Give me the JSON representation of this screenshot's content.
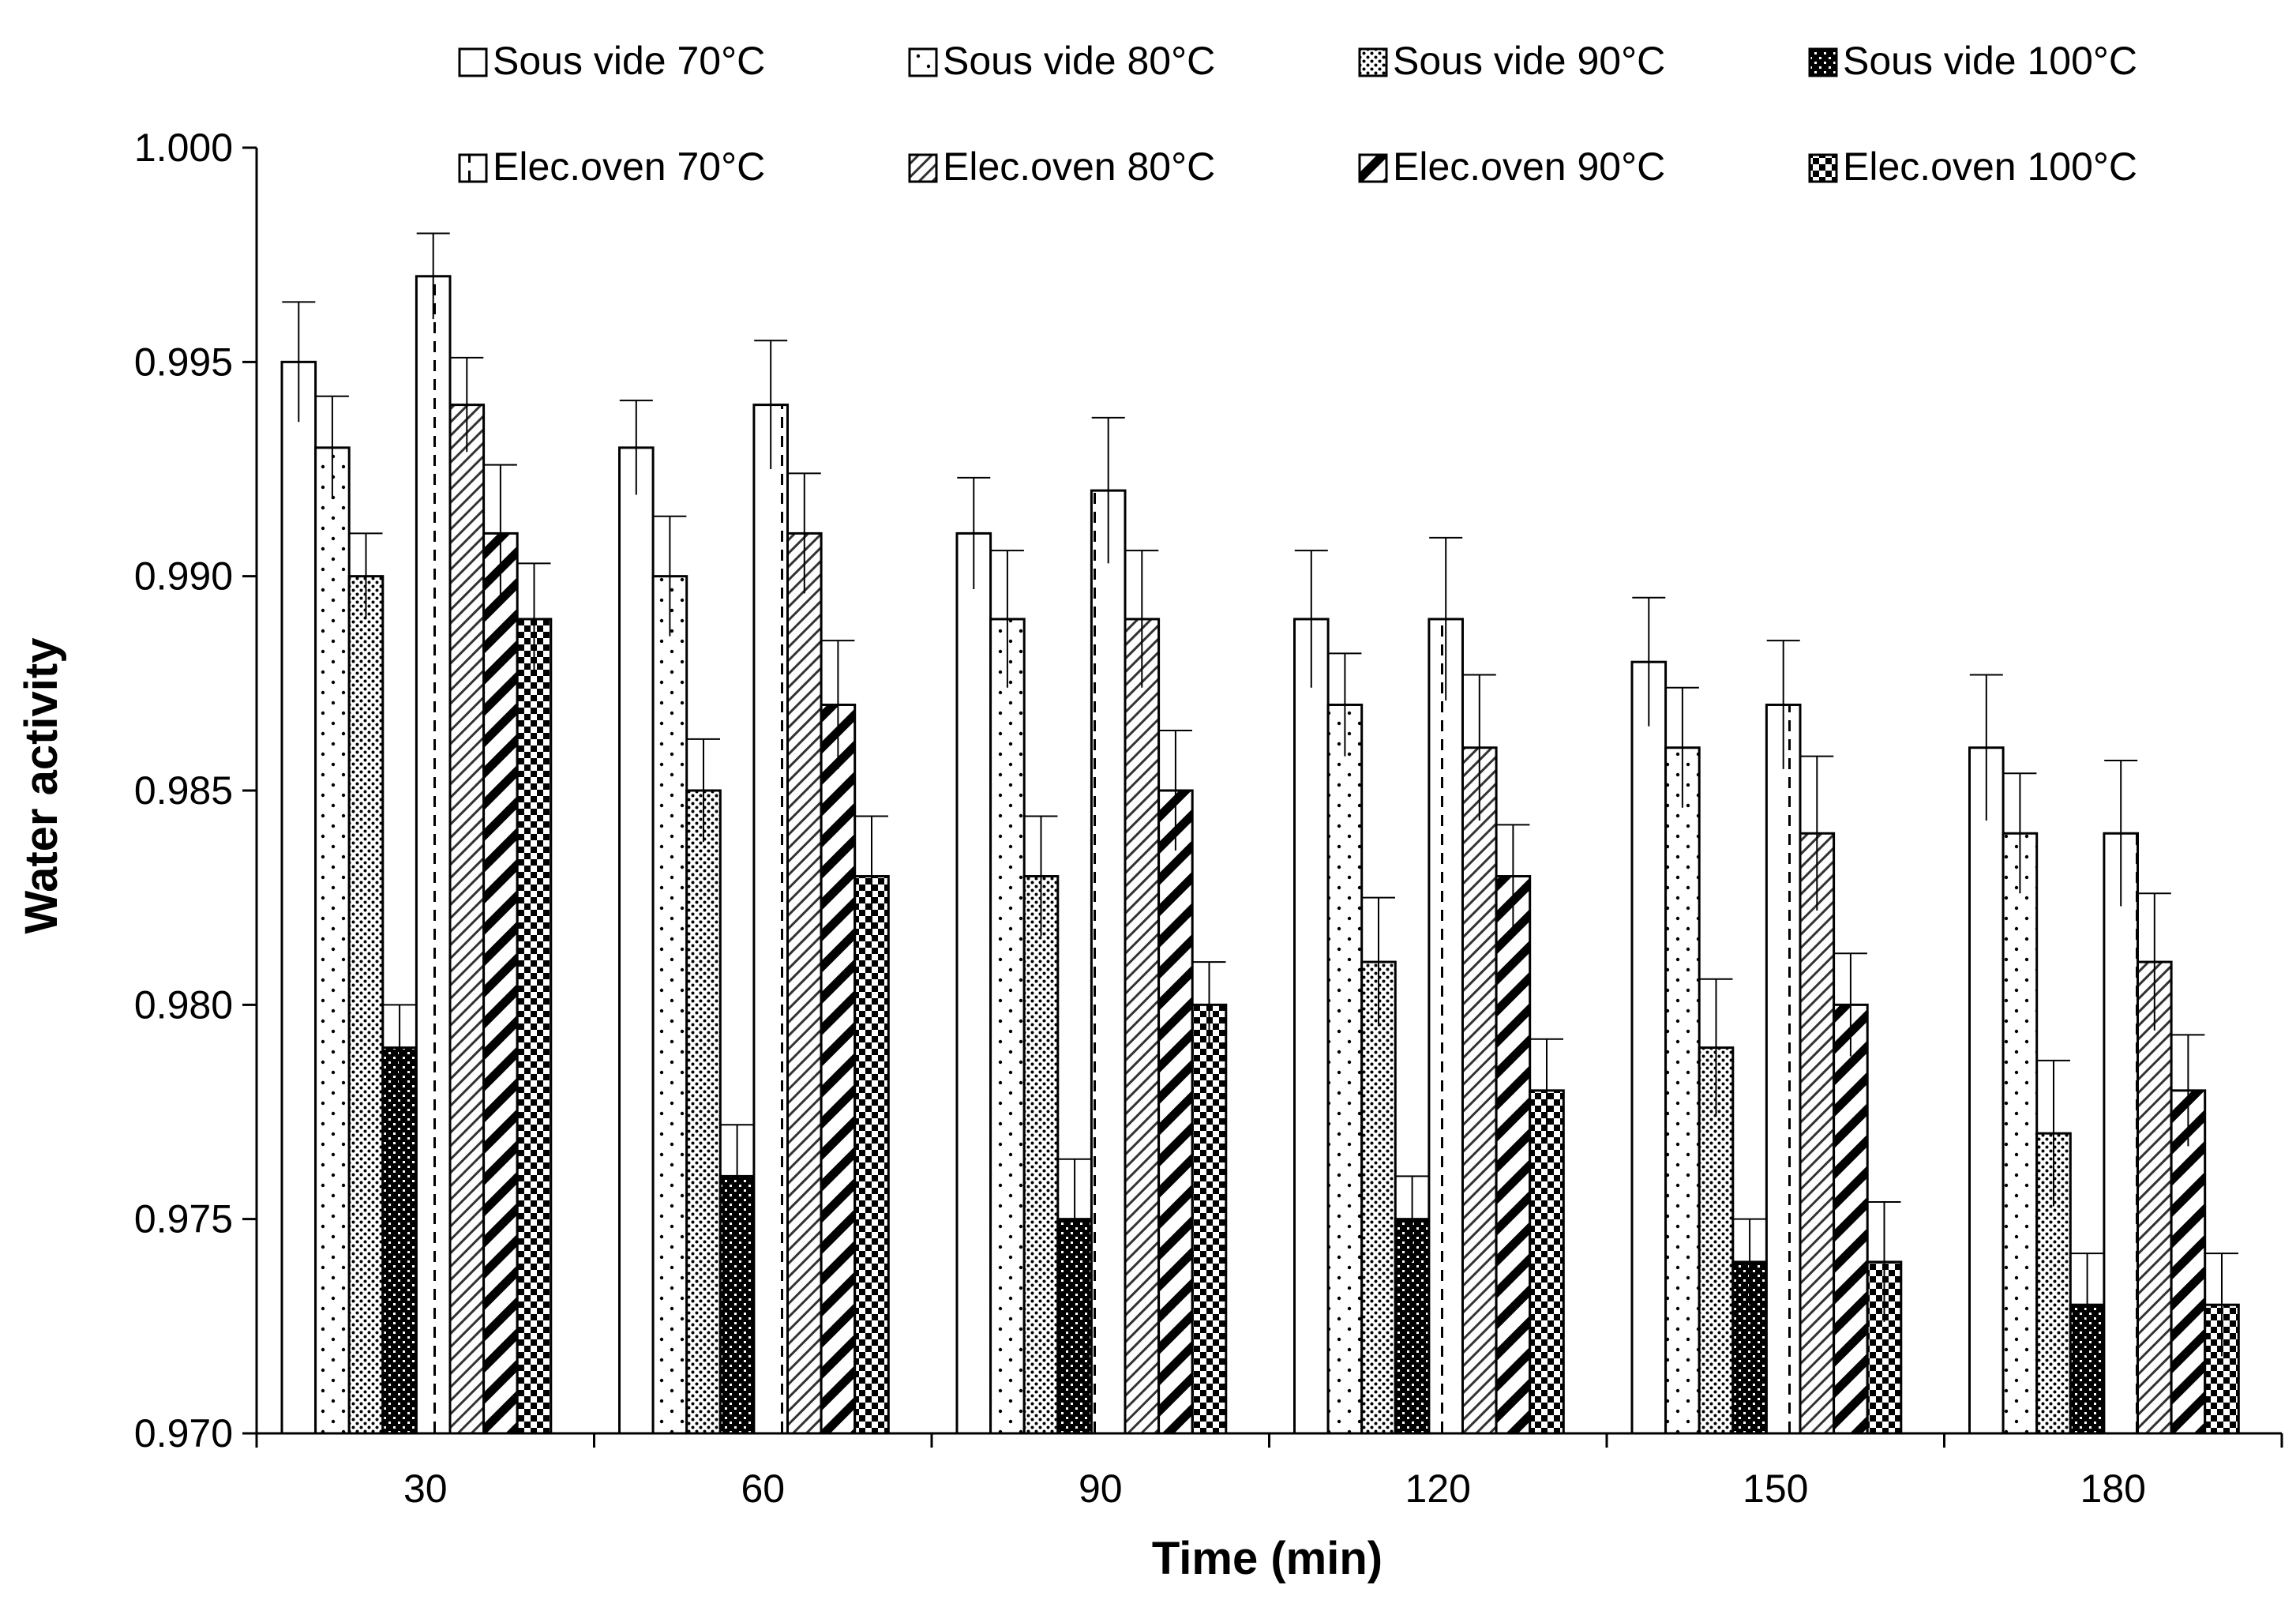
{
  "chart_data": {
    "type": "bar",
    "title": "",
    "xlabel": "Time (min)",
    "ylabel": "Water activity",
    "categories": [
      "30",
      "60",
      "90",
      "120",
      "150",
      "180"
    ],
    "ylim": [
      0.97,
      1.0
    ],
    "yticks": [
      "0.970",
      "0.975",
      "0.980",
      "0.985",
      "0.990",
      "0.995",
      "1.000"
    ],
    "yticks_values": [
      0.97,
      0.975,
      0.98,
      0.985,
      0.99,
      0.995,
      1.0
    ],
    "grid": false,
    "legend_position": "top",
    "error_bars": true,
    "series": [
      {
        "name": "Sous vide 70°C",
        "pattern": "blank",
        "values": [
          0.995,
          0.993,
          0.991,
          0.989,
          0.988,
          0.986
        ],
        "errors": [
          0.0014,
          0.0011,
          0.0013,
          0.0016,
          0.0015,
          0.0017
        ]
      },
      {
        "name": "Sous vide 80°C",
        "pattern": "sparse-dots",
        "values": [
          0.993,
          0.99,
          0.989,
          0.987,
          0.986,
          0.984
        ],
        "errors": [
          0.0012,
          0.0014,
          0.0016,
          0.0012,
          0.0014,
          0.0014
        ]
      },
      {
        "name": "Sous vide 90°C",
        "pattern": "dense-dots",
        "values": [
          0.99,
          0.985,
          0.983,
          0.981,
          0.979,
          0.977
        ],
        "errors": [
          0.001,
          0.0012,
          0.0014,
          0.0015,
          0.0016,
          0.0017
        ]
      },
      {
        "name": "Sous vide 100°C",
        "pattern": "dark-checker",
        "values": [
          0.979,
          0.976,
          0.975,
          0.975,
          0.974,
          0.973
        ],
        "errors": [
          0.001,
          0.0012,
          0.0014,
          0.001,
          0.001,
          0.0012
        ]
      },
      {
        "name": "Elec.oven 70°C",
        "pattern": "vertical-dashed",
        "values": [
          0.997,
          0.994,
          0.992,
          0.989,
          0.987,
          0.984
        ],
        "errors": [
          0.001,
          0.0015,
          0.0017,
          0.0019,
          0.0015,
          0.0017
        ]
      },
      {
        "name": "Elec.oven 80°C",
        "pattern": "light-diagonal",
        "values": [
          0.994,
          0.991,
          0.989,
          0.986,
          0.984,
          0.981
        ],
        "errors": [
          0.0011,
          0.0014,
          0.0016,
          0.0017,
          0.0018,
          0.0016
        ]
      },
      {
        "name": "Elec.oven 90°C",
        "pattern": "wide-diagonal",
        "values": [
          0.991,
          0.987,
          0.985,
          0.983,
          0.98,
          0.978
        ],
        "errors": [
          0.0016,
          0.0015,
          0.0014,
          0.0012,
          0.0012,
          0.0013
        ]
      },
      {
        "name": "Elec.oven 100°C",
        "pattern": "checker",
        "values": [
          0.989,
          0.983,
          0.98,
          0.978,
          0.974,
          0.973
        ],
        "errors": [
          0.0013,
          0.0014,
          0.001,
          0.0012,
          0.0014,
          0.0012
        ]
      }
    ]
  }
}
